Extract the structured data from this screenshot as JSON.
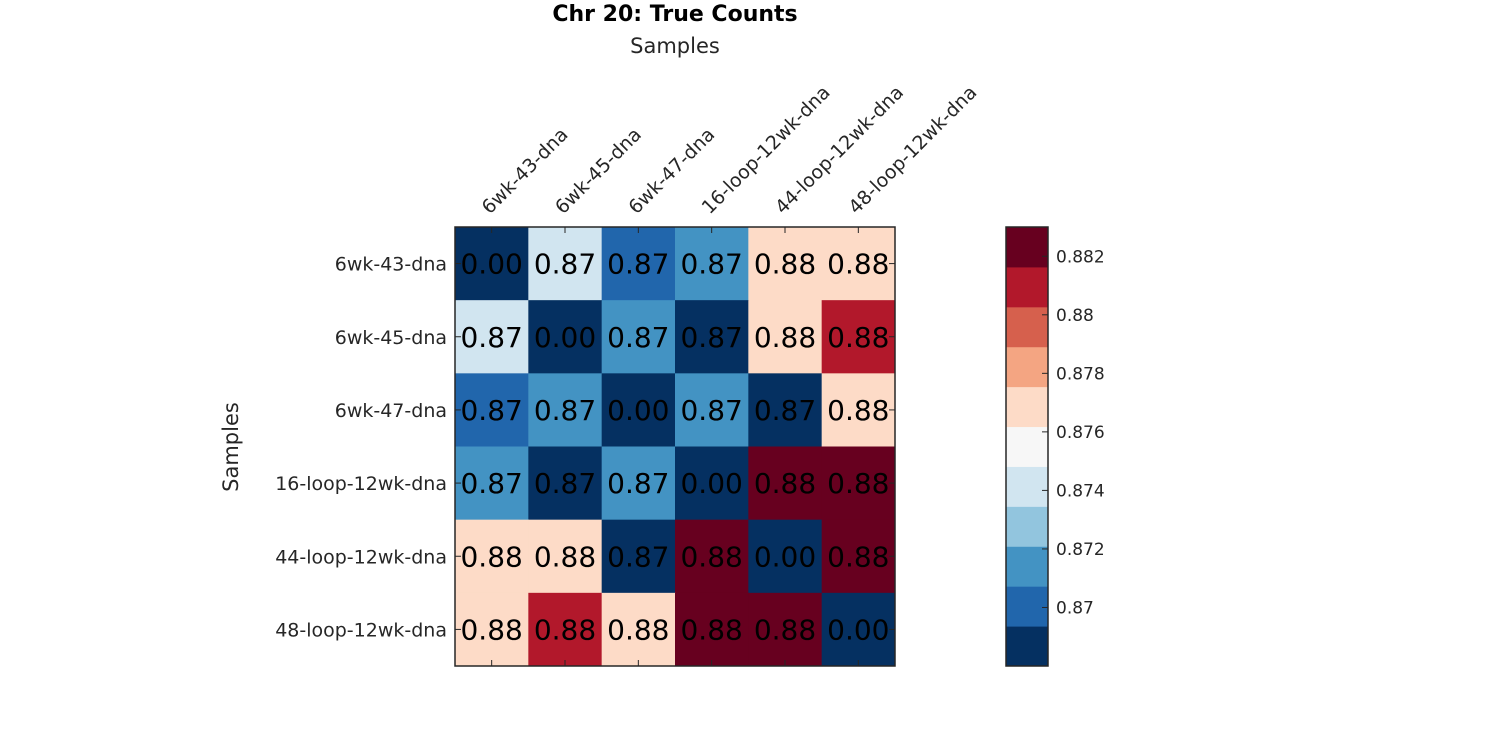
{
  "chart_data": {
    "type": "heatmap",
    "title": "Chr 20: True Counts",
    "xlabel": "Samples",
    "ylabel": "Samples",
    "row_labels": [
      "6wk-43-dna",
      "6wk-45-dna",
      "6wk-47-dna",
      "16-loop-12wk-dna",
      "44-loop-12wk-dna",
      "48-loop-12wk-dna"
    ],
    "col_labels": [
      "6wk-43-dna",
      "6wk-45-dna",
      "6wk-47-dna",
      "16-loop-12wk-dna",
      "44-loop-12wk-dna",
      "48-loop-12wk-dna"
    ],
    "values": [
      [
        0.0,
        0.8745,
        0.8705,
        0.872,
        0.8775,
        0.8775
      ],
      [
        0.8745,
        0.0,
        0.872,
        0.8685,
        0.8775,
        0.8805
      ],
      [
        0.8705,
        0.872,
        0.0,
        0.872,
        0.8685,
        0.8775
      ],
      [
        0.872,
        0.8685,
        0.872,
        0.0,
        0.8835,
        0.8835
      ],
      [
        0.8775,
        0.8775,
        0.8685,
        0.8835,
        0.0,
        0.8825
      ],
      [
        0.8775,
        0.8805,
        0.8775,
        0.8835,
        0.8825,
        0.0
      ]
    ],
    "cell_labels": [
      [
        "0.00",
        "0.87",
        "0.87",
        "0.87",
        "0.88",
        "0.88"
      ],
      [
        "0.87",
        "0.00",
        "0.87",
        "0.87",
        "0.88",
        "0.88"
      ],
      [
        "0.87",
        "0.87",
        "0.00",
        "0.87",
        "0.87",
        "0.88"
      ],
      [
        "0.87",
        "0.87",
        "0.87",
        "0.00",
        "0.88",
        "0.88"
      ],
      [
        "0.88",
        "0.88",
        "0.87",
        "0.88",
        "0.00",
        "0.88"
      ],
      [
        "0.88",
        "0.88",
        "0.88",
        "0.88",
        "0.88",
        "0.00"
      ]
    ],
    "colorbar": {
      "range": [
        0.868,
        0.883
      ],
      "bins": 10,
      "colors": [
        "#053061",
        "#2166ac",
        "#4393c3",
        "#92c5de",
        "#d1e5f0",
        "#f7f7f7",
        "#fddbc7",
        "#f4a582",
        "#d6604d",
        "#b2182b",
        "#67001f"
      ],
      "ticks": [
        0.87,
        0.872,
        0.874,
        0.876,
        0.878,
        0.88,
        0.882
      ],
      "tick_labels": [
        "0.87",
        "0.872",
        "0.874",
        "0.876",
        "0.878",
        "0.88",
        "0.882"
      ]
    },
    "grid": false
  }
}
